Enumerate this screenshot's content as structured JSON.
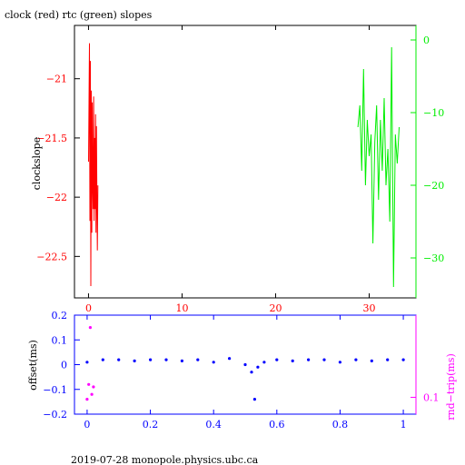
{
  "title": "clock (red) rtc (green) slopes",
  "footer": "2019-07-28  monopole.physics.ubc.ca",
  "colors": {
    "clock": "#ff0000",
    "rtc": "#00ee00",
    "offset": "#0000ff",
    "roundtrip": "#ff00ff",
    "axis": "#000000"
  },
  "chart_data": [
    {
      "type": "line",
      "title": "clock (red) rtc (green) slopes",
      "ylabel": "clockslope",
      "xlim": [
        -1.5,
        35
      ],
      "ylim": [
        -22.85,
        -20.55
      ],
      "y2lim": [
        -35.5,
        2
      ],
      "xticks": [
        0,
        10,
        20,
        30
      ],
      "yticks": [
        -21,
        -21.5,
        -22,
        -22.5
      ],
      "y2ticks": [
        0,
        -10,
        -20,
        -30
      ],
      "grid": false,
      "series": [
        {
          "name": "clock",
          "axis": "left",
          "color": "#ff0000",
          "x": [
            0.0,
            0.1,
            0.15,
            0.2,
            0.25,
            0.3,
            0.35,
            0.4,
            0.45,
            0.5,
            0.55,
            0.6,
            0.65,
            0.7,
            0.75,
            0.8,
            0.85,
            0.9,
            0.95,
            1.0
          ],
          "values": [
            -21.7,
            -20.7,
            -22.2,
            -20.85,
            -22.75,
            -21.1,
            -22.3,
            -21.2,
            -21.9,
            -22.1,
            -21.15,
            -22.2,
            -21.5,
            -22.1,
            -21.3,
            -22.3,
            -21.4,
            -22.0,
            -22.45,
            -21.9
          ]
        },
        {
          "name": "rtc",
          "axis": "right",
          "color": "#00ee00",
          "x": [
            28.8,
            29.0,
            29.2,
            29.4,
            29.6,
            29.8,
            30.0,
            30.2,
            30.4,
            30.6,
            30.8,
            31.0,
            31.2,
            31.4,
            31.6,
            31.8,
            32.0,
            32.2,
            32.4,
            32.6,
            32.8,
            33.0,
            33.2
          ],
          "values": [
            -12,
            -9,
            -18,
            -4,
            -20,
            -11,
            -16,
            -13,
            -28,
            -14,
            -9,
            -22,
            -11,
            -18,
            -8,
            -20,
            -15,
            -25,
            -1,
            -34,
            -13,
            -17,
            -12
          ]
        }
      ]
    },
    {
      "type": "scatter",
      "ylabel": "offset(ms)",
      "y2label": "rnd−trip(ms)",
      "xlim": [
        -0.04,
        1.04
      ],
      "ylim": [
        -0.2,
        0.2
      ],
      "xticks": [
        0,
        0.2,
        0.4,
        0.6,
        0.8,
        1
      ],
      "yticks": [
        0.2,
        0.1,
        0,
        -0.1,
        -0.2
      ],
      "y2ticks": [
        0.1
      ],
      "grid": false,
      "series": [
        {
          "name": "offset",
          "color": "#0000ff",
          "x": [
            0.0,
            0.05,
            0.1,
            0.15,
            0.2,
            0.25,
            0.3,
            0.35,
            0.4,
            0.45,
            0.5,
            0.52,
            0.53,
            0.54,
            0.56,
            0.6,
            0.65,
            0.7,
            0.75,
            0.8,
            0.85,
            0.9,
            0.95,
            1.0
          ],
          "values": [
            0.01,
            0.02,
            0.02,
            0.015,
            0.02,
            0.02,
            0.015,
            0.02,
            0.01,
            0.025,
            0.0,
            -0.03,
            -0.14,
            -0.01,
            0.01,
            0.02,
            0.015,
            0.02,
            0.02,
            0.01,
            0.02,
            0.015,
            0.02,
            0.02
          ]
        },
        {
          "name": "roundtrip",
          "color": "#ff00ff",
          "x": [
            0.0,
            0.005,
            0.01,
            0.015,
            0.02
          ],
          "values": [
            -0.14,
            -0.08,
            0.15,
            -0.12,
            -0.09
          ]
        }
      ]
    }
  ]
}
